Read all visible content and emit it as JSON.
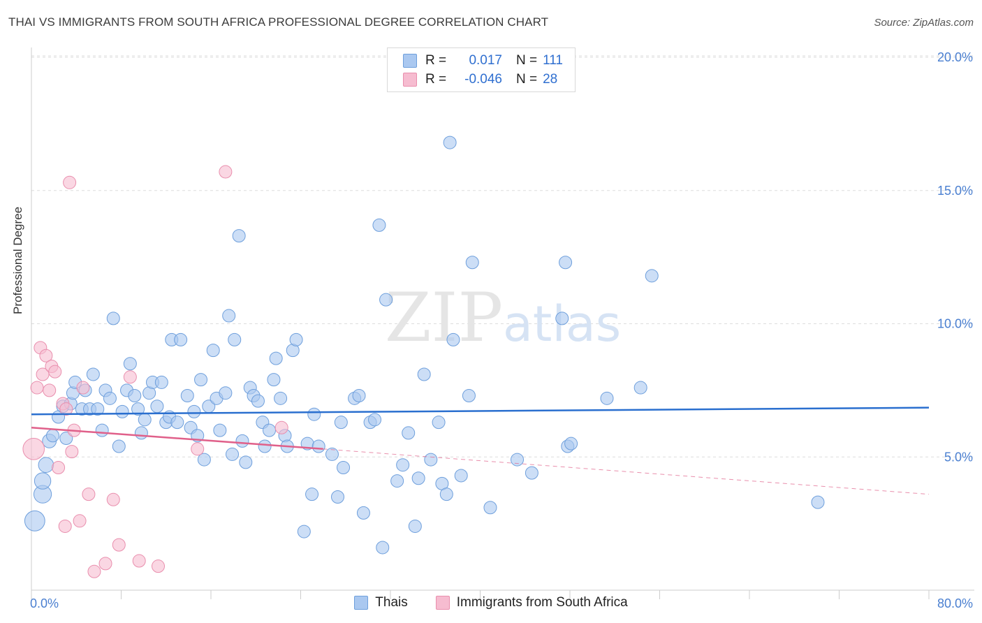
{
  "title": "THAI VS IMMIGRANTS FROM SOUTH AFRICA PROFESSIONAL DEGREE CORRELATION CHART",
  "source": "Source: ZipAtlas.com",
  "watermark": "ZIPatlas",
  "legend": {
    "rows": [
      {
        "r_label": "R =",
        "r_value": "0.017",
        "n_label": "N =",
        "n_value": "111"
      },
      {
        "r_label": "R =",
        "r_value": "-0.046",
        "n_label": "N =",
        "n_value": "28"
      }
    ]
  },
  "bottom_legend": [
    "Thais",
    "Immigrants from South Africa"
  ],
  "colors": {
    "blue_fill": "#aac8f0",
    "blue_stroke": "#6e9fdc",
    "blue_line": "#2a6fcf",
    "pink_fill": "#f6bcd0",
    "pink_stroke": "#e98ead",
    "pink_line": "#e0608a",
    "tick_text": "#4a7fd0",
    "grid": "#dddddd"
  },
  "chart_data": {
    "type": "scatter",
    "title": "THAI VS IMMIGRANTS FROM SOUTH AFRICA PROFESSIONAL DEGREE CORRELATION CHART",
    "xlabel": "",
    "ylabel": "Professional Degree",
    "xlim": [
      0,
      80
    ],
    "ylim": [
      0,
      20
    ],
    "x_tick_labels": [
      "0.0%",
      "80.0%"
    ],
    "y_ticks": [
      5,
      10,
      15,
      20
    ],
    "y_tick_labels": [
      "5.0%",
      "10.0%",
      "15.0%",
      "20.0%"
    ],
    "grid": true,
    "legend_position": "top-center",
    "series": [
      {
        "name": "Thais",
        "r": 0.017,
        "n": 111,
        "trend": {
          "x": [
            0,
            80
          ],
          "y": [
            6.6,
            6.85
          ],
          "style": "solid"
        },
        "points": [
          [
            0.3,
            2.6,
            1.6
          ],
          [
            1.0,
            3.6,
            1.4
          ],
          [
            1.0,
            4.1,
            1.3
          ],
          [
            1.3,
            4.7,
            1.2
          ],
          [
            1.6,
            5.6,
            1.1
          ],
          [
            1.9,
            5.8,
            1.0
          ],
          [
            2.4,
            6.5,
            1.0
          ],
          [
            2.8,
            6.9,
            1.0
          ],
          [
            3.1,
            5.7,
            1.0
          ],
          [
            3.5,
            7.0,
            1.0
          ],
          [
            3.7,
            7.4,
            1.0
          ],
          [
            3.9,
            7.8,
            1.0
          ],
          [
            4.5,
            6.8,
            1.0
          ],
          [
            4.8,
            7.5,
            1.0
          ],
          [
            5.2,
            6.8,
            1.0
          ],
          [
            5.5,
            8.1,
            1.0
          ],
          [
            5.9,
            6.8,
            1.0
          ],
          [
            6.3,
            6.0,
            1.0
          ],
          [
            6.6,
            7.5,
            1.0
          ],
          [
            7.0,
            7.2,
            1.0
          ],
          [
            7.3,
            10.2,
            1.0
          ],
          [
            7.8,
            5.4,
            1.0
          ],
          [
            8.1,
            6.7,
            1.0
          ],
          [
            8.5,
            7.5,
            1.0
          ],
          [
            8.8,
            8.5,
            1.0
          ],
          [
            9.2,
            7.3,
            1.0
          ],
          [
            9.5,
            6.8,
            1.0
          ],
          [
            9.8,
            5.9,
            1.0
          ],
          [
            10.1,
            6.4,
            1.0
          ],
          [
            10.5,
            7.4,
            1.0
          ],
          [
            10.8,
            7.8,
            1.0
          ],
          [
            11.2,
            6.9,
            1.0
          ],
          [
            11.6,
            7.8,
            1.0
          ],
          [
            12.0,
            6.3,
            1.0
          ],
          [
            12.3,
            6.5,
            1.0
          ],
          [
            12.5,
            9.4,
            1.0
          ],
          [
            13.0,
            6.3,
            1.0
          ],
          [
            13.3,
            9.4,
            1.0
          ],
          [
            13.9,
            7.3,
            1.0
          ],
          [
            14.2,
            6.1,
            1.0
          ],
          [
            14.5,
            6.7,
            1.0
          ],
          [
            14.8,
            5.8,
            1.0
          ],
          [
            15.1,
            7.9,
            1.0
          ],
          [
            15.4,
            4.9,
            1.0
          ],
          [
            15.8,
            6.9,
            1.0
          ],
          [
            16.2,
            9.0,
            1.0
          ],
          [
            16.5,
            7.2,
            1.0
          ],
          [
            16.8,
            6.0,
            1.0
          ],
          [
            17.3,
            7.4,
            1.0
          ],
          [
            17.6,
            10.3,
            1.0
          ],
          [
            17.9,
            5.1,
            1.0
          ],
          [
            18.1,
            9.4,
            1.0
          ],
          [
            18.5,
            13.3,
            1.0
          ],
          [
            18.8,
            5.6,
            1.0
          ],
          [
            19.1,
            4.8,
            1.0
          ],
          [
            19.5,
            7.6,
            1.0
          ],
          [
            19.8,
            7.3,
            1.0
          ],
          [
            20.2,
            7.1,
            1.0
          ],
          [
            20.6,
            6.3,
            1.0
          ],
          [
            20.8,
            5.4,
            1.0
          ],
          [
            21.2,
            6.0,
            1.0
          ],
          [
            21.6,
            7.9,
            1.0
          ],
          [
            21.8,
            8.7,
            1.0
          ],
          [
            22.2,
            7.2,
            1.0
          ],
          [
            22.6,
            5.8,
            1.0
          ],
          [
            22.8,
            5.4,
            1.0
          ],
          [
            23.3,
            9.0,
            1.0
          ],
          [
            23.6,
            9.4,
            1.0
          ],
          [
            24.3,
            2.2,
            1.0
          ],
          [
            24.6,
            5.5,
            1.0
          ],
          [
            25.0,
            3.6,
            1.0
          ],
          [
            25.2,
            6.6,
            1.0
          ],
          [
            25.6,
            5.4,
            1.0
          ],
          [
            26.8,
            5.1,
            1.0
          ],
          [
            27.3,
            3.5,
            1.0
          ],
          [
            27.6,
            6.3,
            1.0
          ],
          [
            27.8,
            4.6,
            1.0
          ],
          [
            28.8,
            7.2,
            1.0
          ],
          [
            29.2,
            7.3,
            1.0
          ],
          [
            29.6,
            2.9,
            1.0
          ],
          [
            30.2,
            6.3,
            1.0
          ],
          [
            30.6,
            6.4,
            1.0
          ],
          [
            31.0,
            13.7,
            1.0
          ],
          [
            31.3,
            1.6,
            1.0
          ],
          [
            31.6,
            10.9,
            1.0
          ],
          [
            32.6,
            4.1,
            1.0
          ],
          [
            33.1,
            4.7,
            1.0
          ],
          [
            33.6,
            5.9,
            1.0
          ],
          [
            34.2,
            2.4,
            1.0
          ],
          [
            34.5,
            4.2,
            1.0
          ],
          [
            35.0,
            8.1,
            1.0
          ],
          [
            35.6,
            4.9,
            1.0
          ],
          [
            36.3,
            6.3,
            1.0
          ],
          [
            36.6,
            4.0,
            1.0
          ],
          [
            37.0,
            3.6,
            1.0
          ],
          [
            37.3,
            16.8,
            1.0
          ],
          [
            37.6,
            9.4,
            1.0
          ],
          [
            38.3,
            4.3,
            1.0
          ],
          [
            39.0,
            7.3,
            1.0
          ],
          [
            39.3,
            12.3,
            1.0
          ],
          [
            40.9,
            3.1,
            1.0
          ],
          [
            43.3,
            4.9,
            1.0
          ],
          [
            44.6,
            4.4,
            1.0
          ],
          [
            47.3,
            10.2,
            1.0
          ],
          [
            47.6,
            12.3,
            1.0
          ],
          [
            47.8,
            5.4,
            1.0
          ],
          [
            48.1,
            5.5,
            1.0
          ],
          [
            51.3,
            7.2,
            1.0
          ],
          [
            54.3,
            7.6,
            1.0
          ],
          [
            55.3,
            11.8,
            1.0
          ],
          [
            70.1,
            3.3,
            1.0
          ]
        ]
      },
      {
        "name": "Immigrants from South Africa",
        "r": -0.046,
        "n": 28,
        "trend": {
          "x": [
            0,
            26
          ],
          "y": [
            6.1,
            5.3
          ],
          "style": "solid",
          "extended": {
            "x": [
              26,
              80
            ],
            "y": [
              5.3,
              3.6
            ],
            "style": "dashed"
          }
        },
        "points": [
          [
            0.2,
            5.3,
            1.7
          ],
          [
            0.5,
            7.6,
            1.0
          ],
          [
            0.8,
            9.1,
            1.0
          ],
          [
            1.0,
            8.1,
            1.0
          ],
          [
            1.3,
            8.8,
            1.0
          ],
          [
            1.6,
            7.5,
            1.0
          ],
          [
            1.8,
            8.4,
            1.0
          ],
          [
            2.1,
            8.2,
            1.0
          ],
          [
            2.4,
            4.6,
            1.0
          ],
          [
            2.8,
            7.0,
            1.0
          ],
          [
            3.1,
            6.8,
            1.0
          ],
          [
            3.0,
            2.4,
            1.0
          ],
          [
            3.4,
            15.3,
            1.0
          ],
          [
            3.6,
            5.2,
            1.0
          ],
          [
            3.8,
            6.0,
            1.0
          ],
          [
            4.3,
            2.6,
            1.0
          ],
          [
            4.6,
            7.6,
            1.0
          ],
          [
            5.1,
            3.6,
            1.0
          ],
          [
            5.6,
            0.7,
            1.0
          ],
          [
            6.6,
            1.0,
            1.0
          ],
          [
            7.3,
            3.4,
            1.0
          ],
          [
            7.8,
            1.7,
            1.0
          ],
          [
            8.8,
            8.0,
            1.0
          ],
          [
            9.6,
            1.1,
            1.0
          ],
          [
            11.3,
            0.9,
            1.0
          ],
          [
            14.8,
            5.3,
            1.0
          ],
          [
            17.3,
            15.7,
            1.0
          ],
          [
            22.3,
            6.1,
            1.0
          ]
        ]
      }
    ]
  }
}
